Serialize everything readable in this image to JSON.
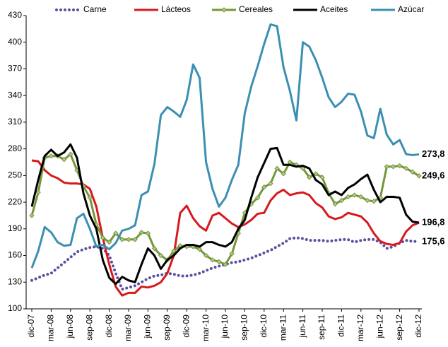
{
  "chart_data": {
    "type": "line",
    "categories": [
      "dic-07",
      null,
      null,
      "mar-08",
      null,
      null,
      "jun-08",
      null,
      null,
      "sep-08",
      null,
      null,
      "dic-08",
      null,
      null,
      "mar-09",
      null,
      null,
      "jun-09",
      null,
      null,
      "sep-09",
      null,
      null,
      "dic-09",
      null,
      null,
      "mar-10",
      null,
      null,
      "jun-10",
      null,
      null,
      "sep-10",
      null,
      null,
      "dic-10",
      null,
      null,
      "mar-11",
      null,
      null,
      "jun-11",
      null,
      null,
      "sep-11",
      null,
      null,
      "dic-11",
      null,
      null,
      "mar-12",
      null,
      null,
      "jun-12",
      null,
      null,
      "sep-12",
      null,
      null,
      "dic-12"
    ],
    "series": [
      {
        "name": "Carne",
        "color": "#5b4f9e",
        "style": "dotted",
        "values": [
          132,
          135,
          138,
          140,
          146,
          152,
          158,
          164,
          167,
          169,
          170,
          168,
          160,
          140,
          122,
          124,
          126,
          130,
          134,
          137,
          138,
          140,
          139,
          137,
          137,
          138,
          140,
          143,
          146,
          148,
          150,
          152,
          153,
          155,
          157,
          160,
          163,
          166,
          170,
          174,
          179,
          180,
          179,
          177,
          177,
          177,
          176,
          177,
          178,
          178,
          175,
          177,
          178,
          178,
          175,
          168,
          170,
          174,
          177,
          176,
          175.6
        ],
        "value_labels": [
          null,
          null,
          null,
          null,
          null,
          null,
          null,
          null,
          null,
          null,
          null,
          null,
          null,
          null,
          null,
          null,
          null,
          null,
          null,
          null,
          null,
          null,
          null,
          null,
          null,
          null,
          null,
          null,
          null,
          null,
          null,
          null,
          null,
          null,
          null,
          null,
          null,
          null,
          null,
          null,
          null,
          null,
          null,
          null,
          null,
          null,
          null,
          null,
          null,
          null,
          null,
          null,
          null,
          null,
          null,
          null,
          null,
          null,
          null,
          null,
          "175,6"
        ]
      },
      {
        "name": "Lácteos",
        "color": "#d7191c",
        "style": "solid",
        "values": [
          267,
          266,
          256,
          250,
          247,
          242,
          241,
          241,
          240,
          235,
          215,
          180,
          150,
          125,
          115,
          118,
          118,
          125,
          124,
          126,
          130,
          140,
          160,
          208,
          216,
          202,
          193,
          188,
          205,
          208,
          202,
          196,
          192,
          195,
          200,
          207,
          208,
          222,
          230,
          234,
          228,
          230,
          231,
          228,
          219,
          214,
          204,
          201,
          203,
          208,
          206,
          204,
          197,
          185,
          176,
          173,
          172,
          174,
          187,
          194,
          196.8
        ],
        "value_labels": [
          null,
          null,
          null,
          null,
          null,
          null,
          null,
          null,
          null,
          null,
          null,
          null,
          null,
          null,
          null,
          null,
          null,
          null,
          null,
          null,
          null,
          null,
          null,
          null,
          null,
          null,
          null,
          null,
          null,
          null,
          null,
          null,
          null,
          null,
          null,
          null,
          null,
          null,
          null,
          null,
          null,
          null,
          null,
          null,
          null,
          null,
          null,
          null,
          null,
          null,
          null,
          null,
          null,
          null,
          null,
          null,
          null,
          null,
          null,
          null,
          "196,8"
        ]
      },
      {
        "name": "Cereales",
        "color": "#76963a",
        "style": "markers",
        "values": [
          205,
          231,
          270,
          272,
          272,
          268,
          274,
          256,
          238,
          225,
          195,
          180,
          175,
          185,
          178,
          178,
          178,
          186,
          185,
          168,
          160,
          155,
          165,
          171,
          170,
          170,
          167,
          160,
          155,
          153,
          150,
          162,
          185,
          208,
          218,
          225,
          237,
          241,
          258,
          252,
          265,
          262,
          258,
          248,
          252,
          248,
          230,
          218,
          222,
          226,
          228,
          226,
          222,
          221,
          225,
          260,
          260,
          261,
          258,
          254,
          249.6
        ],
        "value_labels": [
          null,
          null,
          null,
          null,
          null,
          null,
          null,
          null,
          null,
          null,
          null,
          null,
          null,
          null,
          null,
          null,
          null,
          null,
          null,
          null,
          null,
          null,
          null,
          null,
          null,
          null,
          null,
          null,
          null,
          null,
          null,
          null,
          null,
          null,
          null,
          null,
          null,
          null,
          null,
          null,
          null,
          null,
          null,
          null,
          null,
          null,
          null,
          null,
          null,
          null,
          null,
          null,
          null,
          null,
          null,
          null,
          null,
          null,
          null,
          null,
          "249,6"
        ]
      },
      {
        "name": "Aceites",
        "color": "#000000",
        "style": "solid",
        "values": [
          215,
          245,
          272,
          279,
          272,
          276,
          285,
          270,
          230,
          205,
          190,
          155,
          135,
          128,
          136,
          132,
          130,
          150,
          168,
          160,
          145,
          155,
          160,
          168,
          172,
          172,
          170,
          175,
          175,
          172,
          170,
          175,
          190,
          200,
          225,
          248,
          264,
          280,
          281,
          262,
          262,
          260,
          261,
          258,
          245,
          240,
          228,
          232,
          228,
          236,
          240,
          246,
          251,
          234,
          220,
          226,
          226,
          225,
          206,
          198,
          197
        ]
      },
      {
        "name": "Azúcar",
        "color": "#3b8fb2",
        "style": "solid",
        "values": [
          146,
          165,
          192,
          186,
          175,
          171,
          172,
          202,
          207,
          190,
          170,
          172,
          167,
          174,
          188,
          190,
          194,
          228,
          232,
          263,
          318,
          327,
          322,
          316,
          335,
          375,
          360,
          265,
          235,
          215,
          225,
          245,
          262,
          320,
          350,
          373,
          398,
          420,
          418,
          372,
          345,
          312,
          400,
          395,
          380,
          360,
          338,
          327,
          333,
          342,
          341,
          322,
          295,
          292,
          325,
          296,
          285,
          290,
          274,
          273,
          273.8
        ],
        "value_labels": [
          null,
          null,
          null,
          null,
          null,
          null,
          null,
          null,
          null,
          null,
          null,
          null,
          null,
          null,
          null,
          null,
          null,
          null,
          null,
          null,
          null,
          null,
          null,
          null,
          null,
          null,
          null,
          null,
          null,
          null,
          null,
          null,
          null,
          null,
          null,
          null,
          null,
          null,
          null,
          null,
          null,
          null,
          null,
          null,
          null,
          null,
          null,
          null,
          null,
          null,
          null,
          null,
          null,
          null,
          null,
          null,
          null,
          null,
          null,
          null,
          "273,8"
        ]
      }
    ],
    "ylim": [
      100,
      430
    ],
    "yticks": [
      100,
      130,
      160,
      190,
      220,
      250,
      280,
      310,
      340,
      370,
      400,
      430
    ],
    "grid": false
  }
}
